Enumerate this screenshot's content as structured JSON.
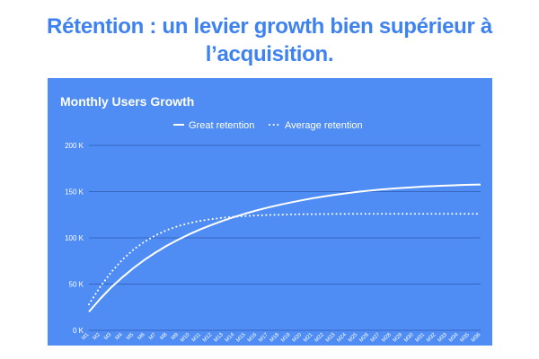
{
  "headline": {
    "line1": "Rétention : un levier growth bien supérieur à",
    "line2": "l’acquisition."
  },
  "colors": {
    "headline": "#3e82f2",
    "panel_background": "#4f8df4",
    "series": "#ffffff",
    "gridline": "#3565bf",
    "axis_text": "#ffffff"
  },
  "chart_data": {
    "type": "line",
    "title": "Monthly Users Growth",
    "xlabel": "",
    "ylabel": "",
    "legend_position": "top-center",
    "grid": true,
    "ylim": [
      0,
      200000
    ],
    "y_ticks": [
      {
        "value": 0,
        "label": "0 K"
      },
      {
        "value": 50000,
        "label": "50 K"
      },
      {
        "value": 100000,
        "label": "100 K"
      },
      {
        "value": 150000,
        "label": "150 K"
      },
      {
        "value": 200000,
        "label": "200 K"
      }
    ],
    "x": [
      "M1",
      "M2",
      "M3",
      "M4",
      "M5",
      "M6",
      "M7",
      "M8",
      "M9",
      "M10",
      "M11",
      "M12",
      "M13",
      "M14",
      "M15",
      "M16",
      "M17",
      "M18",
      "M19",
      "M20",
      "M21",
      "M22",
      "M23",
      "M24",
      "M25",
      "M26",
      "M27",
      "M28",
      "M29",
      "M30",
      "M31",
      "M32",
      "M33",
      "M34",
      "M35",
      "M36"
    ],
    "series": [
      {
        "name": "Great retention",
        "style": "solid",
        "values": [
          20000,
          34000,
          46500,
          57500,
          67500,
          76500,
          84500,
          91700,
          98200,
          104100,
          109400,
          114200,
          118600,
          122600,
          126300,
          129700,
          132800,
          135600,
          138200,
          140600,
          142800,
          144800,
          146600,
          148200,
          149700,
          151000,
          152100,
          153100,
          154000,
          154800,
          155500,
          156100,
          156600,
          157000,
          157400,
          157700
        ]
      },
      {
        "name": "Average retention",
        "style": "dotted",
        "values": [
          28000,
          47000,
          63000,
          76500,
          87500,
          96000,
          103000,
          108500,
          112800,
          116000,
          118500,
          120300,
          121700,
          122800,
          123600,
          124200,
          124700,
          125000,
          125300,
          125500,
          125600,
          125700,
          125800,
          125900,
          125900,
          126000,
          126000,
          126000,
          126000,
          126000,
          126000,
          126000,
          126000,
          126000,
          126000,
          126000
        ]
      }
    ]
  }
}
